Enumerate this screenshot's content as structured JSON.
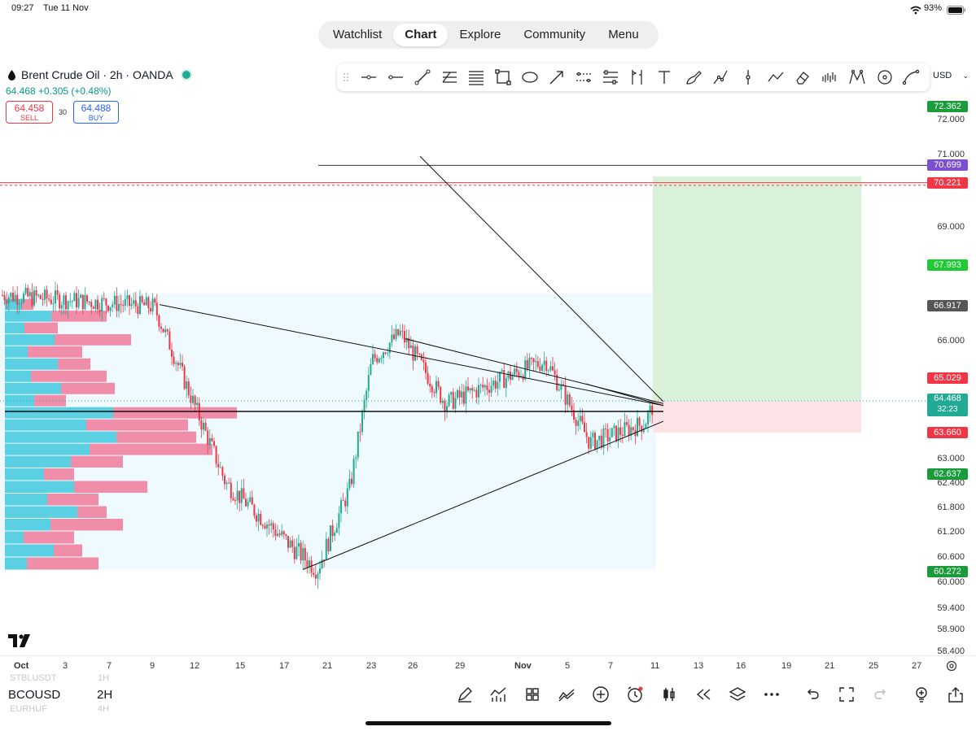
{
  "status_bar": {
    "time": "09:27",
    "date": "Tue 11 Nov",
    "battery": "93%"
  },
  "nav": {
    "items": [
      "Watchlist",
      "Chart",
      "Explore",
      "Community",
      "Menu"
    ],
    "active": "Chart"
  },
  "toolbar": {
    "tools": [
      "horizontal-ray-icon",
      "horizontal-line-icon",
      "trend-line-icon",
      "fib-retracement-icon",
      "parallel-channel-icon",
      "rectangle-icon",
      "ellipse-icon",
      "arrow-icon",
      "price-range-icon",
      "date-range-icon",
      "long-position-icon",
      "short-position-icon",
      "text-icon",
      "brush-icon",
      "path-icon",
      "vertical-line-icon",
      "polyline-icon",
      "eraser-icon",
      "volume-profile-icon",
      "pattern-icon",
      "circle-icon",
      "curve-icon"
    ],
    "currency": "USD"
  },
  "symbol": {
    "title": "Brent Crude Oil · 2h · OANDA",
    "change": "64.468 +0.305 (+0.48%)",
    "sell_price": "64.458",
    "sell_label": "SELL",
    "spread": "30",
    "buy_price": "64.488",
    "buy_label": "BUY"
  },
  "price_axis": [
    "72.000",
    "71.000",
    "69.000",
    "66.000",
    "63.000",
    "62.400",
    "61.800",
    "61.200",
    "60.600",
    "60.000",
    "59.400",
    "58.900",
    "58.400"
  ],
  "price_tags": {
    "t72362": "72.362",
    "t70699": "70.699",
    "t70221": "70.221",
    "t67993": "67.993",
    "t66917": "66.917",
    "t65029": "65.029",
    "t64468": "64.468",
    "countdown": "32:23",
    "t63660": "63.660",
    "t62637": "62.637",
    "t60272": "60.272"
  },
  "colors": {
    "up": "#22ab94",
    "down": "#f23645",
    "accent": "#2962ff",
    "tp_zone": "#daf1d9",
    "sl_zone": "#fde3e5"
  },
  "time_axis": [
    "Oct",
    "3",
    "7",
    "9",
    "12",
    "15",
    "17",
    "21",
    "23",
    "26",
    "29",
    "Nov",
    "5",
    "7",
    "11",
    "13",
    "16",
    "19",
    "21",
    "25",
    "27"
  ],
  "bottom_bar": {
    "symbol": "BCOUSD",
    "interval": "2H",
    "ghost_symbols": [
      "STBLUSDT",
      "EURHUF"
    ],
    "ghost_intervals": [
      "1H",
      "4H"
    ],
    "icons": [
      "pencil-icon",
      "indicators-icon",
      "layouts-icon",
      "compare-icon",
      "add-icon",
      "alert-icon",
      "candles-icon",
      "replay-icon",
      "layers-icon",
      "more-icon",
      "undo-icon",
      "fullscreen-icon",
      "redo-icon",
      "idea-icon",
      "share-icon"
    ]
  },
  "chart_data": {
    "type": "candlestick",
    "symbol": "BCOUSD",
    "interval": "2H",
    "x_range": [
      "Oct 1",
      "Nov 27"
    ],
    "ylim": [
      58.2,
      73.0
    ],
    "key_points": [
      {
        "date": "Oct 1",
        "price": 67.2
      },
      {
        "date": "Oct 9",
        "price": 66.9
      },
      {
        "date": "Oct 12",
        "price": 64.3
      },
      {
        "date": "Oct 14",
        "price": 62.4
      },
      {
        "date": "Oct 17",
        "price": 61.0
      },
      {
        "date": "Oct 20",
        "price": 60.3
      },
      {
        "date": "Oct 22",
        "price": 62.3
      },
      {
        "date": "Oct 23",
        "price": 65.5
      },
      {
        "date": "Oct 25",
        "price": 66.2
      },
      {
        "date": "Oct 28",
        "price": 64.4
      },
      {
        "date": "Nov 3",
        "price": 65.5
      },
      {
        "date": "Nov 6",
        "price": 63.4
      },
      {
        "date": "Nov 10",
        "price": 63.9
      },
      {
        "date": "Nov 11",
        "price": 64.47
      }
    ],
    "horizontal_levels": [
      70.699,
      70.221,
      64.2
    ],
    "long_position": {
      "entry": 64.468,
      "target": 70.4,
      "stop": 63.66
    }
  }
}
